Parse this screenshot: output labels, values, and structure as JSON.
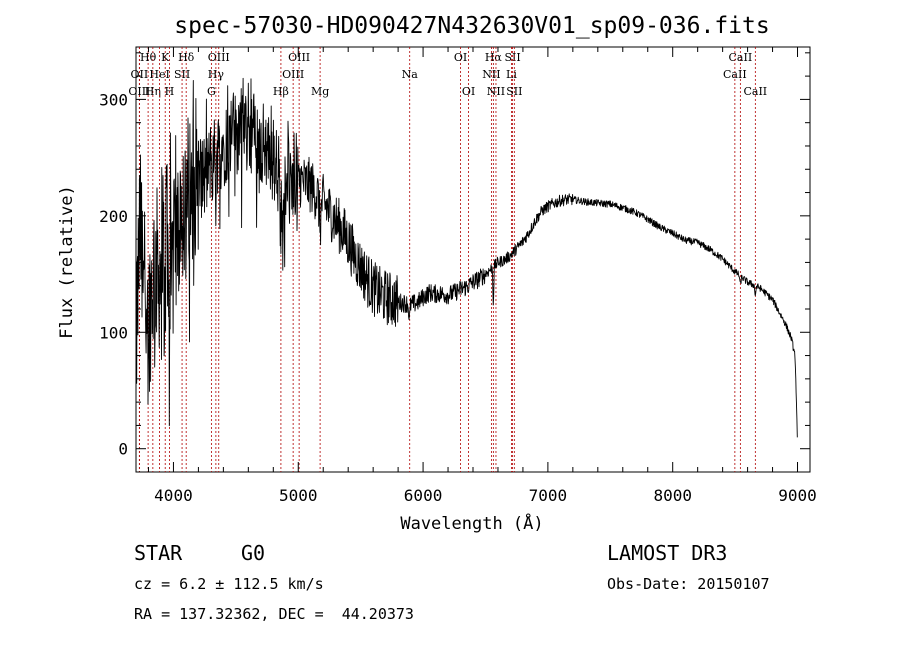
{
  "chart_data": {
    "type": "line",
    "title": "spec-57030-HD090427N432630V01_sp09-036.fits",
    "xlabel": "Wavelength (Å)",
    "ylabel": "Flux (relative)",
    "xlim": [
      3700,
      9100
    ],
    "ylim": [
      -20,
      345
    ],
    "xticks": [
      4000,
      5000,
      6000,
      7000,
      8000,
      9000
    ],
    "yticks": [
      0,
      100,
      200,
      300
    ],
    "xtick_labels": [
      "4000",
      "5000",
      "6000",
      "7000",
      "8000",
      "9000"
    ],
    "ytick_labels": [
      "0",
      "100",
      "200",
      "300"
    ],
    "series": [
      {
        "name": "flux",
        "anchors": [
          [
            3700,
            80
          ],
          [
            3730,
            190
          ],
          [
            3760,
            170
          ],
          [
            3800,
            110
          ],
          [
            3850,
            160
          ],
          [
            3900,
            150
          ],
          [
            3950,
            200
          ],
          [
            4000,
            160
          ],
          [
            4050,
            200
          ],
          [
            4100,
            215
          ],
          [
            4150,
            228
          ],
          [
            4200,
            238
          ],
          [
            4250,
            232
          ],
          [
            4300,
            245
          ],
          [
            4350,
            255
          ],
          [
            4400,
            262
          ],
          [
            4450,
            268
          ],
          [
            4500,
            270
          ],
          [
            4550,
            282
          ],
          [
            4600,
            278
          ],
          [
            4650,
            270
          ],
          [
            4700,
            262
          ],
          [
            4750,
            258
          ],
          [
            4800,
            252
          ],
          [
            4850,
            232
          ],
          [
            4900,
            238
          ],
          [
            4950,
            235
          ],
          [
            5000,
            232
          ],
          [
            5050,
            228
          ],
          [
            5100,
            226
          ],
          [
            5150,
            218
          ],
          [
            5200,
            212
          ],
          [
            5250,
            204
          ],
          [
            5300,
            196
          ],
          [
            5350,
            188
          ],
          [
            5400,
            178
          ],
          [
            5450,
            166
          ],
          [
            5500,
            156
          ],
          [
            5550,
            146
          ],
          [
            5600,
            138
          ],
          [
            5650,
            133
          ],
          [
            5700,
            130
          ],
          [
            5750,
            128
          ],
          [
            5800,
            126
          ],
          [
            5850,
            125
          ],
          [
            5900,
            124
          ],
          [
            5950,
            125
          ],
          [
            6000,
            130
          ],
          [
            6050,
            134
          ],
          [
            6100,
            133
          ],
          [
            6150,
            133
          ],
          [
            6200,
            132
          ],
          [
            6250,
            134
          ],
          [
            6300,
            137
          ],
          [
            6350,
            139
          ],
          [
            6400,
            143
          ],
          [
            6450,
            146
          ],
          [
            6500,
            150
          ],
          [
            6550,
            155
          ],
          [
            6600,
            160
          ],
          [
            6650,
            162
          ],
          [
            6700,
            166
          ],
          [
            6750,
            172
          ],
          [
            6800,
            178
          ],
          [
            6850,
            186
          ],
          [
            6900,
            196
          ],
          [
            6950,
            204
          ],
          [
            7000,
            208
          ],
          [
            7050,
            211
          ],
          [
            7100,
            213
          ],
          [
            7150,
            214
          ],
          [
            7200,
            214
          ],
          [
            7300,
            212
          ],
          [
            7400,
            211
          ],
          [
            7500,
            210
          ],
          [
            7600,
            207
          ],
          [
            7700,
            203
          ],
          [
            7800,
            197
          ],
          [
            7900,
            190
          ],
          [
            8000,
            185
          ],
          [
            8100,
            179
          ],
          [
            8200,
            177
          ],
          [
            8300,
            171
          ],
          [
            8400,
            163
          ],
          [
            8500,
            152
          ],
          [
            8600,
            143
          ],
          [
            8700,
            138
          ],
          [
            8800,
            128
          ],
          [
            8900,
            108
          ],
          [
            8950,
            95
          ],
          [
            8980,
            80
          ],
          [
            9000,
            5
          ]
        ],
        "absorption_features": [
          {
            "x": 3933,
            "depth": 90,
            "width": 4
          },
          {
            "x": 3968,
            "depth": 120,
            "width": 4
          },
          {
            "x": 4101,
            "depth": 55,
            "width": 6
          },
          {
            "x": 4340,
            "depth": 30,
            "width": 6
          },
          {
            "x": 4861,
            "depth": 40,
            "width": 8
          },
          {
            "x": 5175,
            "depth": 22,
            "width": 10
          },
          {
            "x": 5890,
            "depth": 15,
            "width": 6
          },
          {
            "x": 6563,
            "depth": 30,
            "width": 5
          },
          {
            "x": 8542,
            "depth": 8,
            "width": 6
          },
          {
            "x": 8662,
            "depth": 8,
            "width": 6
          }
        ],
        "noise": [
          {
            "from": 3700,
            "to": 4200,
            "amplitude": 70
          },
          {
            "from": 4200,
            "to": 5000,
            "amplitude": 38
          },
          {
            "from": 5000,
            "to": 5800,
            "amplitude": 24
          },
          {
            "from": 5800,
            "to": 6500,
            "amplitude": 8
          },
          {
            "from": 6500,
            "to": 7200,
            "amplitude": 5
          },
          {
            "from": 7200,
            "to": 9000,
            "amplitude": 3
          }
        ],
        "step": 3
      }
    ],
    "line_markers": [
      {
        "label": "Hθ",
        "wavelength": 3797,
        "row": 1
      },
      {
        "label": "OII",
        "wavelength": 3727,
        "row": 2
      },
      {
        "label": "OIII",
        "wavelength": 3727,
        "row": 3
      },
      {
        "label": "Hη",
        "wavelength": 3835,
        "row": 3
      },
      {
        "label": "HeI",
        "wavelength": 3889,
        "row": 2
      },
      {
        "label": "K",
        "wavelength": 3934,
        "row": 1
      },
      {
        "label": "SII",
        "wavelength": 4069,
        "row": 2
      },
      {
        "label": "H",
        "wavelength": 3968,
        "row": 3
      },
      {
        "label": "Hδ",
        "wavelength": 4102,
        "row": 1
      },
      {
        "label": "OIII",
        "wavelength": 4363,
        "row": 1
      },
      {
        "label": "Hγ",
        "wavelength": 4340,
        "row": 2
      },
      {
        "label": "G",
        "wavelength": 4304,
        "row": 3
      },
      {
        "label": "Hβ",
        "wavelength": 4861,
        "row": 3
      },
      {
        "label": "OIII",
        "wavelength": 5007,
        "row": 1
      },
      {
        "label": "OIII",
        "wavelength": 4959,
        "row": 2
      },
      {
        "label": "Mg",
        "wavelength": 5175,
        "row": 3
      },
      {
        "label": "Na",
        "wavelength": 5893,
        "row": 2
      },
      {
        "label": "OI",
        "wavelength": 6300,
        "row": 1
      },
      {
        "label": "OI",
        "wavelength": 6364,
        "row": 3
      },
      {
        "label": "Hα",
        "wavelength": 6563,
        "row": 1
      },
      {
        "label": "NII",
        "wavelength": 6548,
        "row": 2
      },
      {
        "label": "NII",
        "wavelength": 6584,
        "row": 3
      },
      {
        "label": "SII",
        "wavelength": 6717,
        "row": 1
      },
      {
        "label": "Li",
        "wavelength": 6708,
        "row": 2
      },
      {
        "label": "SII",
        "wavelength": 6731,
        "row": 3
      },
      {
        "label": "CaII",
        "wavelength": 8542,
        "row": 1
      },
      {
        "label": "CaII",
        "wavelength": 8498,
        "row": 2
      },
      {
        "label": "CaII",
        "wavelength": 8662,
        "row": 3
      }
    ],
    "annotations": {
      "object_class": "STAR",
      "subclass": "G0",
      "redshift": "cz = 6.2 ± 112.5 km/s",
      "coordinates": "RA = 137.32362, DEC =  44.20373",
      "survey": "LAMOST DR3",
      "obs_date": "Obs-Date: 20150107"
    },
    "colors": {
      "spectrum": "#000000",
      "line_markers": "#b00000",
      "axes": "#000000",
      "background": "#ffffff"
    }
  }
}
